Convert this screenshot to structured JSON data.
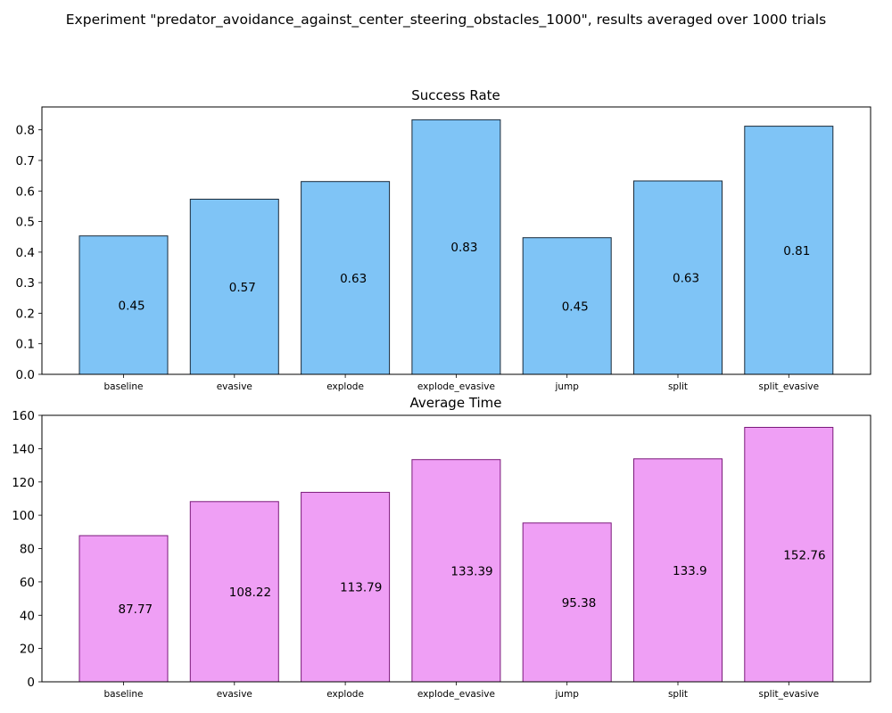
{
  "figure": {
    "title": "Experiment \"predator_avoidance_against_center_steering_obstacles_1000\", results averaged over 1000 trials"
  },
  "chart_data": [
    {
      "type": "bar",
      "title": "Success Rate",
      "xlabel": "",
      "ylabel": "",
      "categories": [
        "baseline",
        "evasive",
        "explode",
        "explode_evasive",
        "jump",
        "split",
        "split_evasive"
      ],
      "values": [
        0.453,
        0.573,
        0.631,
        0.833,
        0.447,
        0.633,
        0.812
      ],
      "value_labels": [
        "0.45",
        "0.57",
        "0.63",
        "0.83",
        "0.45",
        "0.63",
        "0.81"
      ],
      "ylim": [
        0,
        0.875
      ],
      "yticks": [
        0.0,
        0.1,
        0.2,
        0.3,
        0.4,
        0.5,
        0.6,
        0.7,
        0.8
      ],
      "ytick_labels": [
        "0.0",
        "0.1",
        "0.2",
        "0.3",
        "0.4",
        "0.5",
        "0.6",
        "0.7",
        "0.8"
      ],
      "grid": false,
      "bar_color": "#7fc4f6",
      "edge_color": "#1a2a3a"
    },
    {
      "type": "bar",
      "title": "Average Time",
      "xlabel": "",
      "ylabel": "",
      "categories": [
        "baseline",
        "evasive",
        "explode",
        "explode_evasive",
        "jump",
        "split",
        "split_evasive"
      ],
      "values": [
        87.77,
        108.22,
        113.79,
        133.39,
        95.38,
        133.9,
        152.76
      ],
      "value_labels": [
        "87.77",
        "108.22",
        "113.79",
        "133.39",
        "95.38",
        "133.9",
        "152.76"
      ],
      "ylim": [
        0,
        160
      ],
      "yticks": [
        0,
        20,
        40,
        60,
        80,
        100,
        120,
        140,
        160
      ],
      "ytick_labels": [
        "0",
        "20",
        "40",
        "60",
        "80",
        "100",
        "120",
        "140",
        "160"
      ],
      "grid": false,
      "bar_color": "#ef9ff5",
      "edge_color": "#7a1a7a"
    }
  ]
}
